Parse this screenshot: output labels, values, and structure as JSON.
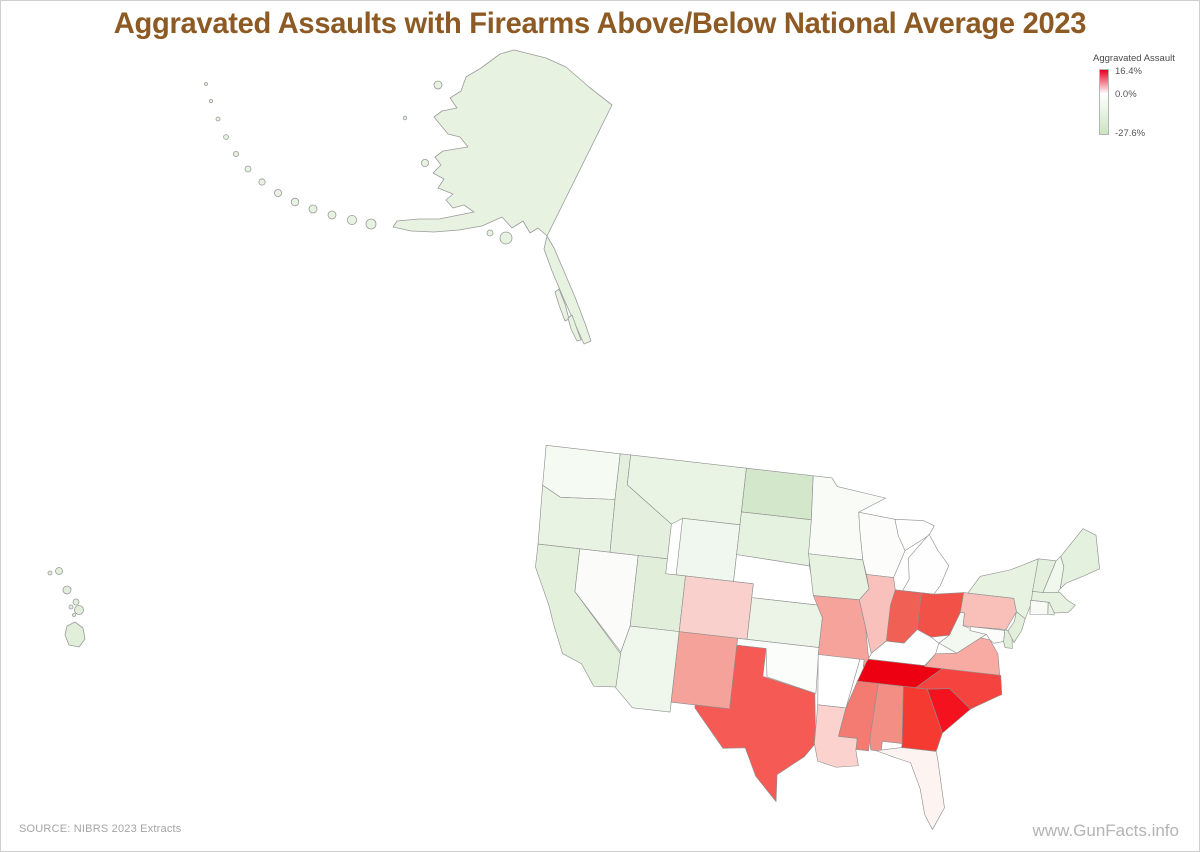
{
  "page": {
    "title": "Aggravated Assaults with Firearms Above/Below National Average 2023",
    "title_color": "#8d5a24"
  },
  "legend": {
    "title": "Aggravated Assault",
    "max_label": "16.4%",
    "zero_label": "0.0%",
    "min_label": "-27.6%",
    "top_color": "#e8001c",
    "mid_color": "#ffffff",
    "bottom_color": "#cbe5c0"
  },
  "footer": {
    "source": "SOURCE: NIBRS 2023 Extracts",
    "watermark": "www.GunFacts.info"
  },
  "chart_data": {
    "type": "choropleth",
    "region": "United States (50 states)",
    "title": "Aggravated Assaults with Firearms Above/Below National Average 2023",
    "unit": "%",
    "value_description": "Percent above (red) or below (green) the national average of aggravated assaults with firearms, 2023",
    "colorbar": {
      "label": "Aggravated Assault",
      "max": 16.4,
      "mid": 0.0,
      "min": -27.6,
      "tick_labels": [
        "16.4%",
        "0.0%",
        "-27.6%"
      ],
      "max_color": "#e8001c",
      "mid_color": "#ffffff",
      "min_color": "#cbe5c0",
      "position": "top-right",
      "orientation": "vertical"
    },
    "source": "NIBRS 2023 Extracts",
    "states": [
      {
        "abbr": "AL",
        "name": "Alabama",
        "value": 7.4,
        "color": "#f28e84"
      },
      {
        "abbr": "AK",
        "name": "Alaska",
        "value": -6.2,
        "color": "#e7f2e1"
      },
      {
        "abbr": "AZ",
        "name": "Arizona",
        "value": -3.5,
        "color": "#eff7ec"
      },
      {
        "abbr": "AR",
        "name": "Arkansas",
        "value": 0.0,
        "color": "#ffffff"
      },
      {
        "abbr": "CA",
        "name": "California",
        "value": -6.8,
        "color": "#e3f0dc"
      },
      {
        "abbr": "CO",
        "name": "Colorado",
        "value": 3.0,
        "color": "#f9d0cb"
      },
      {
        "abbr": "CT",
        "name": "Connecticut",
        "value": -0.8,
        "color": "#f7faf5"
      },
      {
        "abbr": "DE",
        "name": "Delaware",
        "value": -8.0,
        "color": "#dfeed8"
      },
      {
        "abbr": "FL",
        "name": "Florida",
        "value": 0.7,
        "color": "#fdf3f1"
      },
      {
        "abbr": "GA",
        "name": "Georgia",
        "value": 13.2,
        "color": "#f53b31"
      },
      {
        "abbr": "HI",
        "name": "Hawaii",
        "value": -7.8,
        "color": "#e1efda"
      },
      {
        "abbr": "ID",
        "name": "Idaho",
        "value": -6.3,
        "color": "#e4f0dd"
      },
      {
        "abbr": "IL",
        "name": "Illinois",
        "value": 4.0,
        "color": "#f8c1bb"
      },
      {
        "abbr": "IN",
        "name": "Indiana",
        "value": 10.8,
        "color": "#f06055"
      },
      {
        "abbr": "IA",
        "name": "Iowa",
        "value": -5.8,
        "color": "#e7f2e0"
      },
      {
        "abbr": "KS",
        "name": "Kansas",
        "value": -4.0,
        "color": "#ebf4e6"
      },
      {
        "abbr": "KY",
        "name": "Kentucky",
        "value": -0.2,
        "color": "#fdfefd"
      },
      {
        "abbr": "LA",
        "name": "Louisiana",
        "value": 3.1,
        "color": "#fbd2cd"
      },
      {
        "abbr": "ME",
        "name": "Maine",
        "value": -6.0,
        "color": "#e4f1de"
      },
      {
        "abbr": "MD",
        "name": "Maryland",
        "value": -0.4,
        "color": "#fcfdfb"
      },
      {
        "abbr": "MA",
        "name": "Massachusetts",
        "value": -5.5,
        "color": "#e6f2df"
      },
      {
        "abbr": "MI",
        "name": "Michigan",
        "value": -0.2,
        "color": "#fdfefd"
      },
      {
        "abbr": "MN",
        "name": "Minnesota",
        "value": -1.0,
        "color": "#f8fbf6"
      },
      {
        "abbr": "MS",
        "name": "Mississippi",
        "value": 9.2,
        "color": "#f37b71"
      },
      {
        "abbr": "MO",
        "name": "Missouri",
        "value": 6.3,
        "color": "#f5a39b"
      },
      {
        "abbr": "MT",
        "name": "Montana",
        "value": -4.5,
        "color": "#eaf4e4"
      },
      {
        "abbr": "NE",
        "name": "Nebraska",
        "value": 0.0,
        "color": "#ffffff"
      },
      {
        "abbr": "NV",
        "name": "Nevada",
        "value": -0.6,
        "color": "#fbfcfa"
      },
      {
        "abbr": "NH",
        "name": "New Hampshire",
        "value": -2.5,
        "color": "#f0f7ed"
      },
      {
        "abbr": "NJ",
        "name": "New Jersey",
        "value": -6.5,
        "color": "#e2efdb"
      },
      {
        "abbr": "NM",
        "name": "New Mexico",
        "value": 6.4,
        "color": "#f5a29a"
      },
      {
        "abbr": "NY",
        "name": "New York",
        "value": -5.8,
        "color": "#e7f2e1"
      },
      {
        "abbr": "NC",
        "name": "North Carolina",
        "value": 12.6,
        "color": "#f54440"
      },
      {
        "abbr": "ND",
        "name": "North Dakota",
        "value": -27.6,
        "color": "#d3e8ca"
      },
      {
        "abbr": "OH",
        "name": "Ohio",
        "value": 11.5,
        "color": "#f25147"
      },
      {
        "abbr": "OK",
        "name": "Oklahoma",
        "value": -0.4,
        "color": "#fbfdfa"
      },
      {
        "abbr": "OR",
        "name": "Oregon",
        "value": -4.8,
        "color": "#e9f3e3"
      },
      {
        "abbr": "PA",
        "name": "Pennsylvania",
        "value": 4.3,
        "color": "#f9c0ba"
      },
      {
        "abbr": "RI",
        "name": "Rhode Island",
        "value": -5.2,
        "color": "#e8f3e2"
      },
      {
        "abbr": "SC",
        "name": "South Carolina",
        "value": 15.8,
        "color": "#f5121f"
      },
      {
        "abbr": "SD",
        "name": "South Dakota",
        "value": -5.5,
        "color": "#e6f2e0"
      },
      {
        "abbr": "TN",
        "name": "Tennessee",
        "value": 16.4,
        "color": "#ee0013"
      },
      {
        "abbr": "TX",
        "name": "Texas",
        "value": 10.4,
        "color": "#f55a55"
      },
      {
        "abbr": "UT",
        "name": "Utah",
        "value": -7.5,
        "color": "#e1efda"
      },
      {
        "abbr": "VT",
        "name": "Vermont",
        "value": -6.2,
        "color": "#e3f0dd"
      },
      {
        "abbr": "VA",
        "name": "Virginia",
        "value": 5.6,
        "color": "#f7aba3"
      },
      {
        "abbr": "WA",
        "name": "Washington",
        "value": -1.5,
        "color": "#f5faf3"
      },
      {
        "abbr": "WV",
        "name": "West Virginia",
        "value": -2.8,
        "color": "#f3f8f0"
      },
      {
        "abbr": "WI",
        "name": "Wisconsin",
        "value": -0.6,
        "color": "#fcfdfb"
      },
      {
        "abbr": "WY",
        "name": "Wyoming",
        "value": -2.8,
        "color": "#f0f7ee"
      }
    ]
  }
}
